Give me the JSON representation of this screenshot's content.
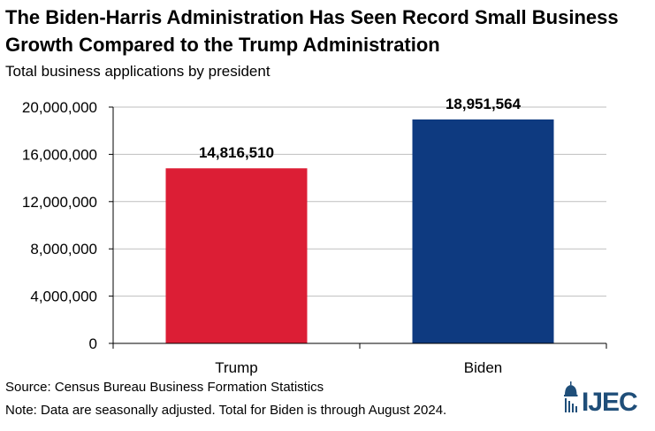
{
  "chart_data": {
    "type": "bar",
    "title": "The Biden-Harris Administration Has Seen Record Small Business Growth Compared to the Trump Administration",
    "subtitle": "Total business applications by president",
    "categories": [
      "Trump",
      "Biden"
    ],
    "values": [
      14816510,
      18951564
    ],
    "data_labels": [
      "14,816,510",
      "18,951,564"
    ],
    "colors": [
      "#dc1e35",
      "#0e3a80"
    ],
    "ylim": [
      0,
      20000000
    ],
    "yticks": [
      0,
      4000000,
      8000000,
      12000000,
      16000000,
      20000000
    ],
    "ytick_labels": [
      "0",
      "4,000,000",
      "8,000,000",
      "12,000,000",
      "16,000,000",
      "20,000,000"
    ],
    "grid": true,
    "legend": "none"
  },
  "footer": {
    "source": "Source: Census Bureau Business Formation Statistics",
    "note": "Note: Data are seasonally adjusted. Total for Biden is through August 2024."
  },
  "logo": {
    "text": "IJEC",
    "icon": "capitol-dome-icon",
    "color": "#1f4e79"
  }
}
